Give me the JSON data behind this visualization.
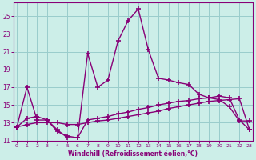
{
  "xlabel": "Windchill (Refroidissement éolien,°C)",
  "background_color": "#cceee8",
  "line_color": "#880077",
  "grid_color": "#99cccc",
  "x_ticks": [
    0,
    1,
    2,
    3,
    4,
    5,
    6,
    7,
    8,
    9,
    10,
    11,
    12,
    13,
    14,
    15,
    16,
    17,
    18,
    19,
    20,
    21,
    22,
    23
  ],
  "y_ticks": [
    11,
    13,
    15,
    17,
    19,
    21,
    23,
    25
  ],
  "xlim": [
    -0.3,
    23.3
  ],
  "ylim": [
    11,
    26.5
  ],
  "series1_x": [
    0,
    1,
    2,
    3,
    4,
    5,
    6,
    7,
    8,
    9,
    10,
    11,
    12,
    13,
    14,
    15,
    16,
    17,
    18,
    19,
    20,
    21,
    22,
    23
  ],
  "series1_y": [
    12.5,
    17.0,
    13.3,
    13.3,
    12.2,
    11.3,
    11.3,
    20.8,
    17.0,
    17.8,
    22.2,
    24.5,
    25.8,
    21.2,
    18.0,
    17.8,
    17.5,
    17.3,
    16.2,
    15.8,
    15.6,
    14.8,
    13.2,
    13.2
  ],
  "series2_x": [
    0,
    1,
    2,
    3,
    4,
    5,
    6,
    7,
    8,
    9,
    10,
    11,
    12,
    13,
    14,
    15,
    16,
    17,
    18,
    19,
    20,
    21,
    22,
    23
  ],
  "series2_y": [
    12.5,
    13.5,
    13.7,
    13.3,
    12.0,
    11.5,
    11.3,
    13.3,
    13.5,
    13.7,
    14.0,
    14.2,
    14.5,
    14.7,
    15.0,
    15.2,
    15.4,
    15.5,
    15.7,
    15.8,
    16.0,
    15.8,
    13.3,
    12.2
  ],
  "series3_x": [
    0,
    1,
    2,
    3,
    4,
    5,
    6,
    7,
    8,
    9,
    10,
    11,
    12,
    13,
    14,
    15,
    16,
    17,
    18,
    19,
    20,
    21,
    22,
    23
  ],
  "series3_y": [
    12.5,
    12.8,
    13.0,
    13.0,
    13.0,
    12.8,
    12.8,
    13.0,
    13.2,
    13.3,
    13.5,
    13.7,
    13.9,
    14.1,
    14.3,
    14.6,
    14.8,
    15.0,
    15.2,
    15.4,
    15.5,
    15.6,
    15.7,
    12.2
  ]
}
